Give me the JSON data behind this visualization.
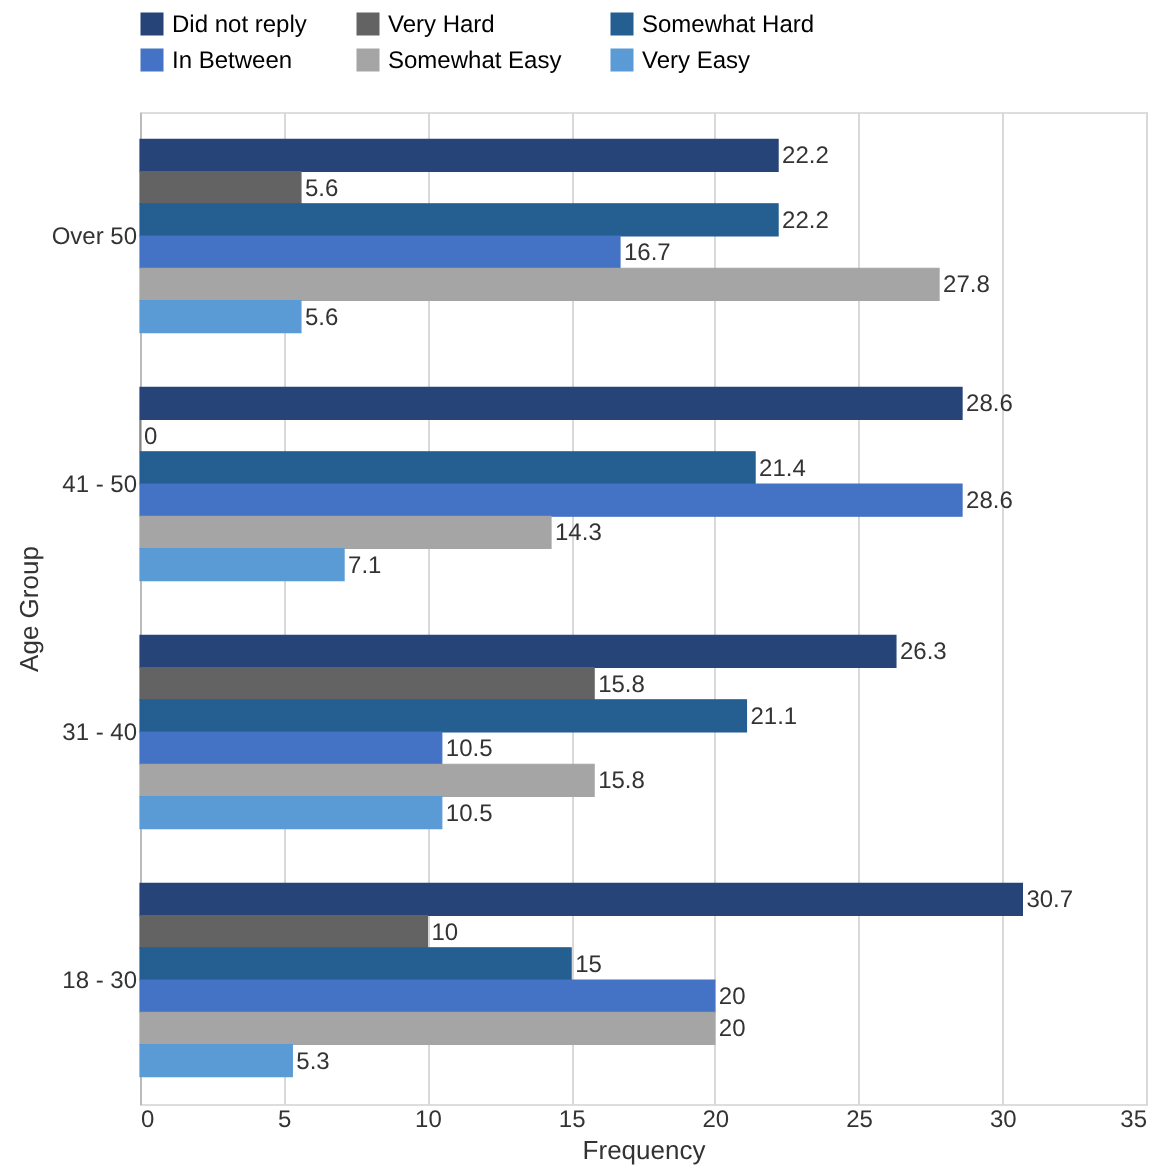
{
  "chart_data": {
    "type": "bar",
    "orientation": "horizontal",
    "xlabel": "Frequency",
    "ylabel": "Age Group",
    "categories": [
      "Over 50",
      "41 - 50",
      "31 - 40",
      "18 - 30"
    ],
    "series": [
      {
        "name": "Did not reply",
        "color": "#264478",
        "values": [
          22.2,
          28.6,
          26.3,
          30.7
        ]
      },
      {
        "name": "Very Hard",
        "color": "#636363",
        "values": [
          5.6,
          0,
          15.8,
          10
        ]
      },
      {
        "name": "Somewhat Hard",
        "color": "#255e91",
        "values": [
          22.2,
          21.4,
          21.1,
          15
        ]
      },
      {
        "name": "In Between",
        "color": "#4472c4",
        "values": [
          16.7,
          28.6,
          10.5,
          20
        ]
      },
      {
        "name": "Somewhat Easy",
        "color": "#a5a5a5",
        "values": [
          27.8,
          14.3,
          15.8,
          20
        ]
      },
      {
        "name": "Very Easy",
        "color": "#5b9bd5",
        "values": [
          5.6,
          7.1,
          10.5,
          5.3
        ]
      }
    ],
    "xlim": [
      0,
      35
    ],
    "xticks": [
      0,
      5,
      10,
      15,
      20,
      25,
      30,
      35
    ],
    "grid": "x",
    "legend": "top",
    "data_labels": true
  }
}
